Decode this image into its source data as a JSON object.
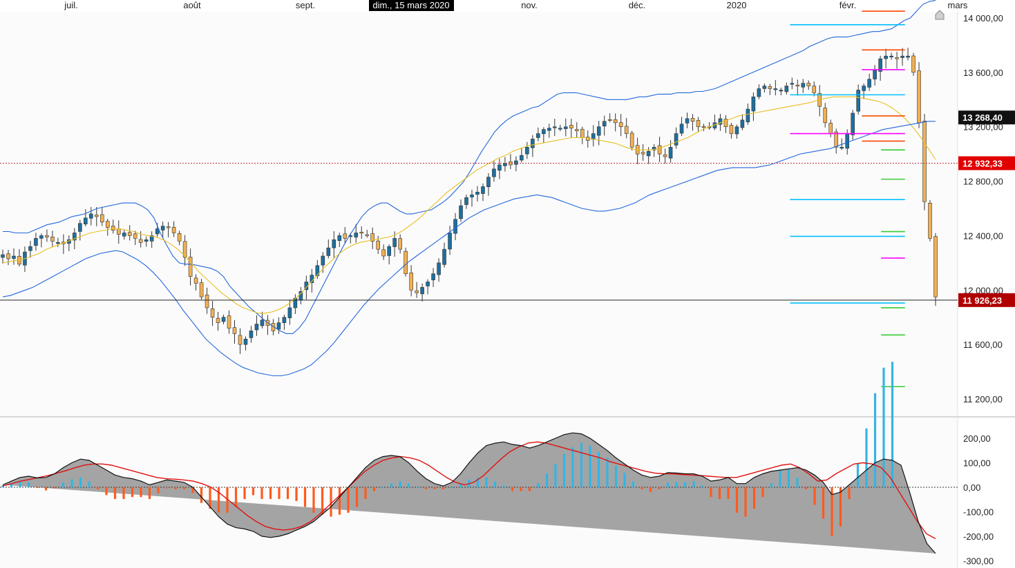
{
  "chart_data": {
    "type": "candlestick",
    "months": [
      "juil.",
      "août",
      "sept.",
      "nov.",
      "déc.",
      "2020",
      "févr.",
      "mars"
    ],
    "crosshair_date": "dim., 15 mars 2020",
    "price_panel": {
      "ylim": [
        11000,
        14100
      ],
      "ticks": [
        "14 000,00",
        "13 600,00",
        "13 200,00",
        "12 800,00",
        "12 400,00",
        "12 000,00",
        "11 600,00",
        "11 200,00"
      ],
      "tick_values": [
        14000,
        13600,
        13200,
        12800,
        12400,
        12000,
        11600,
        11200
      ],
      "tags": [
        {
          "label": "13 268,40",
          "value": 13268.4,
          "color": "#111111"
        },
        {
          "label": "12 932,33",
          "value": 12932.33,
          "color": "#e00000"
        },
        {
          "label": "11 926,23",
          "value": 11926.23,
          "color": "#b00000"
        }
      ],
      "crosshair_value": 11926.23,
      "dotted_line_value": 12932.33,
      "levels": [
        {
          "value": 13950,
          "color": "#00bfff",
          "from": 0.825,
          "to": 0.945
        },
        {
          "value": 13435,
          "color": "#00bfff",
          "from": 0.825,
          "to": 0.945
        },
        {
          "value": 12665,
          "color": "#00bfff",
          "from": 0.825,
          "to": 0.945
        },
        {
          "value": 12395,
          "color": "#00bfff",
          "from": 0.825,
          "to": 0.945
        },
        {
          "value": 11905,
          "color": "#00bfff",
          "from": 0.825,
          "to": 0.945
        },
        {
          "value": 13150,
          "color": "#ff00ff",
          "from": 0.825,
          "to": 0.945
        },
        {
          "value": 13620,
          "color": "#ff00ff",
          "from": 0.9,
          "to": 0.945
        },
        {
          "value": 12235,
          "color": "#ff00ff",
          "from": 0.92,
          "to": 0.945
        },
        {
          "value": 14050,
          "color": "#ff4500",
          "from": 0.9,
          "to": 0.945
        },
        {
          "value": 13765,
          "color": "#ff4500",
          "from": 0.9,
          "to": 0.945
        },
        {
          "value": 13280,
          "color": "#ff4500",
          "from": 0.9,
          "to": 0.945
        },
        {
          "value": 13095,
          "color": "#ff4500",
          "from": 0.9,
          "to": 0.945
        },
        {
          "value": 13030,
          "color": "#33cc33",
          "from": 0.92,
          "to": 0.945
        },
        {
          "value": 12815,
          "color": "#33cc33",
          "from": 0.92,
          "to": 0.945
        },
        {
          "value": 12430,
          "color": "#33cc33",
          "from": 0.92,
          "to": 0.945
        },
        {
          "value": 11870,
          "color": "#33cc33",
          "from": 0.92,
          "to": 0.945
        },
        {
          "value": 11670,
          "color": "#33cc33",
          "from": 0.92,
          "to": 0.945
        },
        {
          "value": 11290,
          "color": "#33cc33",
          "from": 0.92,
          "to": 0.945
        }
      ],
      "closes": [
        12260,
        12230,
        12250,
        12190,
        12280,
        12320,
        12380,
        12400,
        12390,
        12360,
        12350,
        12340,
        12370,
        12420,
        12490,
        12530,
        12560,
        12540,
        12500,
        12460,
        12440,
        12410,
        12420,
        12400,
        12380,
        12350,
        12370,
        12400,
        12450,
        12470,
        12460,
        12420,
        12360,
        12240,
        12100,
        12050,
        11950,
        11870,
        11800,
        11760,
        11800,
        11720,
        11680,
        11600,
        11640,
        11700,
        11750,
        11780,
        11740,
        11700,
        11760,
        11800,
        11870,
        11940,
        11990,
        12060,
        12110,
        12180,
        12250,
        12310,
        12370,
        12400,
        12380,
        12400,
        12420,
        12420,
        12400,
        12360,
        12300,
        12250,
        12320,
        12380,
        12300,
        12120,
        12000,
        11980,
        12020,
        12060,
        12120,
        12200,
        12300,
        12420,
        12520,
        12620,
        12680,
        12700,
        12720,
        12760,
        12830,
        12890,
        12920,
        12930,
        12920,
        12950,
        12990,
        13050,
        13110,
        13150,
        13180,
        13190,
        13200,
        13190,
        13200,
        13190,
        13170,
        13120,
        13100,
        13150,
        13200,
        13240,
        13250,
        13230,
        13200,
        13150,
        13050,
        13000,
        13000,
        13020,
        13050,
        13000,
        12980,
        13050,
        13150,
        13220,
        13260,
        13240,
        13200,
        13200,
        13200,
        13230,
        13260,
        13200,
        13150,
        13200,
        13250,
        13330,
        13420,
        13480,
        13500,
        13480,
        13480,
        13470,
        13500,
        13520,
        13500,
        13520,
        13500,
        13450,
        13350,
        13230,
        13150,
        13050,
        13050,
        13150,
        13300,
        13470,
        13500,
        13550,
        13620,
        13700,
        13720,
        13720,
        13700,
        13720,
        13720,
        13600,
        13230,
        12650,
        12380,
        11950
      ],
      "bb_upper": [
        12430,
        12430,
        12420,
        12420,
        12420,
        12440,
        12460,
        12480,
        12490,
        12500,
        12520,
        12540,
        12550,
        12560,
        12580,
        12600,
        12610,
        12620,
        12630,
        12640,
        12640,
        12640,
        12620,
        12590,
        12530,
        12420,
        12330,
        12250,
        12200,
        12190,
        12190,
        12180,
        12170,
        12160,
        12140,
        12100,
        12030,
        11980,
        11930,
        11880,
        11840,
        11800,
        11760,
        11730,
        11700,
        11680,
        11680,
        11720,
        11780,
        11870,
        11960,
        12050,
        12140,
        12230,
        12320,
        12400,
        12470,
        12540,
        12590,
        12620,
        12640,
        12640,
        12610,
        12580,
        12560,
        12560,
        12570,
        12580,
        12590,
        12620,
        12650,
        12690,
        12740,
        12790,
        12860,
        12940,
        13020,
        13090,
        13160,
        13210,
        13250,
        13280,
        13300,
        13320,
        13340,
        13350,
        13380,
        13410,
        13440,
        13450,
        13450,
        13450,
        13440,
        13430,
        13420,
        13410,
        13400,
        13400,
        13400,
        13400,
        13410,
        13420,
        13420,
        13430,
        13440,
        13440,
        13440,
        13450,
        13450,
        13450,
        13460,
        13460,
        13470,
        13480,
        13500,
        13520,
        13540,
        13560,
        13580,
        13600,
        13620,
        13640,
        13660,
        13680,
        13700,
        13720,
        13740,
        13760,
        13790,
        13810,
        13830,
        13850,
        13860,
        13860,
        13860,
        13870,
        13880,
        13890,
        13900,
        13900,
        13910,
        13920,
        13950,
        13980,
        14000,
        14050,
        14100,
        14120,
        14130
      ],
      "bb_middle": [
        12200,
        12210,
        12220,
        12230,
        12250,
        12270,
        12300,
        12320,
        12340,
        12360,
        12380,
        12400,
        12420,
        12430,
        12440,
        12450,
        12450,
        12440,
        12430,
        12410,
        12400,
        12390,
        12370,
        12340,
        12300,
        12250,
        12190,
        12130,
        12080,
        12030,
        11980,
        11940,
        11900,
        11870,
        11850,
        11830,
        11830,
        11840,
        11860,
        11890,
        11930,
        11980,
        12040,
        12100,
        12160,
        12210,
        12260,
        12300,
        12330,
        12350,
        12360,
        12370,
        12380,
        12390,
        12410,
        12440,
        12480,
        12520,
        12570,
        12620,
        12670,
        12720,
        12760,
        12800,
        12840,
        12880,
        12910,
        12940,
        12970,
        12990,
        13020,
        13040,
        13060,
        13070,
        13080,
        13090,
        13100,
        13110,
        13120,
        13120,
        13120,
        13110,
        13100,
        13090,
        13080,
        13060,
        13040,
        13030,
        13030,
        13030,
        13040,
        13060,
        13080,
        13100,
        13120,
        13150,
        13180,
        13200,
        13220,
        13240,
        13260,
        13280,
        13290,
        13300,
        13310,
        13320,
        13330,
        13340,
        13350,
        13360,
        13370,
        13380,
        13400,
        13410,
        13420,
        13420,
        13420,
        13420,
        13410,
        13400,
        13390,
        13370,
        13340,
        13300,
        13250,
        13190,
        13120,
        13040,
        12960
      ],
      "bb_lower": [
        11950,
        11960,
        11980,
        12000,
        12020,
        12050,
        12080,
        12110,
        12140,
        12170,
        12200,
        12230,
        12250,
        12270,
        12280,
        12290,
        12280,
        12250,
        12220,
        12180,
        12130,
        12070,
        12000,
        11930,
        11850,
        11780,
        11710,
        11640,
        11590,
        11540,
        11500,
        11460,
        11430,
        11410,
        11390,
        11380,
        11370,
        11370,
        11380,
        11400,
        11420,
        11450,
        11500,
        11550,
        11610,
        11680,
        11750,
        11820,
        11890,
        11950,
        12010,
        12060,
        12110,
        12160,
        12210,
        12250,
        12290,
        12330,
        12370,
        12410,
        12450,
        12490,
        12530,
        12560,
        12590,
        12610,
        12630,
        12650,
        12670,
        12680,
        12690,
        12700,
        12690,
        12680,
        12660,
        12640,
        12620,
        12600,
        12590,
        12580,
        12580,
        12590,
        12600,
        12620,
        12640,
        12670,
        12700,
        12720,
        12740,
        12760,
        12780,
        12800,
        12820,
        12840,
        12860,
        12880,
        12890,
        12900,
        12900,
        12900,
        12900,
        12910,
        12920,
        12940,
        12960,
        12980,
        13000,
        13010,
        13020,
        13030,
        13040,
        13060,
        13080,
        13100,
        13120,
        13140,
        13160,
        13180,
        13190,
        13200,
        13210,
        13220,
        13230,
        13240,
        13240
      ]
    },
    "macd_panel": {
      "ylim": [
        -320,
        250
      ],
      "ticks": [
        "200,00",
        "100,00",
        "0,00",
        "-100,00",
        "-200,00",
        "-300,00"
      ],
      "tick_values": [
        200,
        100,
        0,
        -100,
        -200,
        -300
      ],
      "macd_line": [
        10,
        25,
        40,
        45,
        38,
        40,
        55,
        80,
        100,
        115,
        110,
        90,
        70,
        50,
        40,
        35,
        25,
        10,
        20,
        30,
        25,
        20,
        0,
        -40,
        -80,
        -120,
        -150,
        -165,
        -170,
        -180,
        -200,
        -205,
        -200,
        -190,
        -175,
        -160,
        -140,
        -110,
        -80,
        -40,
        0,
        40,
        80,
        110,
        125,
        130,
        125,
        100,
        65,
        35,
        15,
        5,
        20,
        55,
        100,
        140,
        170,
        180,
        185,
        175,
        170,
        160,
        170,
        185,
        200,
        215,
        222,
        218,
        200,
        175,
        150,
        120,
        95,
        70,
        50,
        40,
        45,
        60,
        58,
        55,
        55,
        45,
        25,
        30,
        40,
        15,
        15,
        40,
        55,
        65,
        70,
        75,
        80,
        70,
        50,
        20,
        -30,
        -20,
        10,
        40,
        70,
        100,
        115,
        110,
        90,
        -20,
        -140,
        -230,
        -270
      ],
      "signal_line": [
        5,
        15,
        25,
        32,
        40,
        48,
        58,
        68,
        80,
        90,
        95,
        95,
        90,
        80,
        70,
        60,
        50,
        40,
        35,
        33,
        30,
        25,
        15,
        0,
        -25,
        -55,
        -85,
        -115,
        -140,
        -160,
        -170,
        -175,
        -170,
        -160,
        -140,
        -110,
        -75,
        -40,
        -5,
        30,
        65,
        90,
        110,
        120,
        125,
        120,
        110,
        90,
        65,
        40,
        20,
        10,
        20,
        45,
        80,
        115,
        145,
        165,
        180,
        185,
        180,
        170,
        160,
        150,
        140,
        130,
        120,
        105,
        95,
        85,
        75,
        65,
        58,
        55,
        55,
        52,
        50,
        48,
        45,
        42,
        40,
        40,
        50,
        60,
        70,
        80,
        90,
        95,
        80,
        55,
        25,
        30,
        55,
        75,
        95,
        100,
        95,
        80,
        40,
        -20,
        -80,
        -140,
        -190,
        -210
      ]
    }
  }
}
